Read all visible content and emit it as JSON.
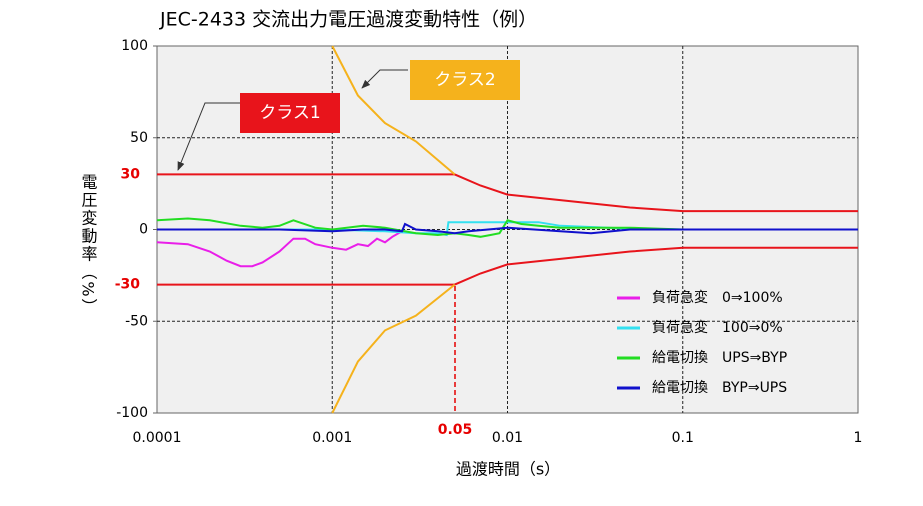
{
  "chart_data": {
    "type": "line",
    "title": "JEC-2433 交流出力電圧過渡変動特性（例）",
    "x_label": "過渡時間（s）",
    "y_label": "電圧変動率（%）",
    "xscale": "log",
    "xlim": [
      0.0001,
      1
    ],
    "xticks": [
      0.0001,
      0.001,
      0.01,
      0.1,
      1
    ],
    "ylim": [
      -100,
      100
    ],
    "yticks": [
      -100,
      -50,
      0,
      50,
      100
    ],
    "ref_yticks": [
      30,
      -30
    ],
    "ref_ytick_color": "#e60000",
    "grid": true,
    "annotation": "0.05",
    "limits": [
      {
        "name": "クラス1",
        "color": "#e8141b",
        "upper_x": [
          0.0001,
          0.005,
          0.007,
          0.01,
          0.02,
          0.05,
          0.1,
          1
        ],
        "upper_values": [
          30,
          30,
          24,
          19,
          16,
          12,
          10,
          10
        ],
        "lower_x": [
          0.0001,
          0.005,
          0.007,
          0.01,
          0.02,
          0.05,
          0.1,
          1
        ],
        "lower_values": [
          -30,
          -30,
          -24,
          -19,
          -16,
          -12,
          -10,
          -10
        ]
      },
      {
        "name": "クラス2",
        "color": "#f5b21c",
        "upper_x": [
          0.001,
          0.0014,
          0.002,
          0.003,
          0.005
        ],
        "upper_values": [
          100,
          73,
          58,
          48,
          30
        ],
        "lower_x": [
          0.001,
          0.0014,
          0.002,
          0.003,
          0.005
        ],
        "lower_values": [
          -100,
          -72,
          -55,
          -47,
          -30
        ]
      }
    ],
    "series": [
      {
        "name": "負荷急変　0⇒100%",
        "color": "#e91ee9",
        "x": [
          0.0001,
          0.00015,
          0.0002,
          0.00025,
          0.0003,
          0.00035,
          0.0004,
          0.0005,
          0.0006,
          0.0007,
          0.0008,
          0.001,
          0.0012,
          0.0014,
          0.0016,
          0.0018,
          0.002,
          0.0022,
          0.0025
        ],
        "values": [
          -7,
          -8,
          -12,
          -17,
          -20,
          -20,
          -18,
          -12,
          -5,
          -5,
          -8,
          -10,
          -11,
          -8,
          -9,
          -5,
          -7,
          -4,
          -1
        ]
      },
      {
        "name": "負荷急変　100⇒0%",
        "color": "#33e0f0",
        "x": [
          0.0001,
          0.0005,
          0.001,
          0.002,
          0.003,
          0.004,
          0.0045,
          0.0046,
          0.006,
          0.008,
          0.01,
          0.015,
          0.02,
          0.05,
          0.1,
          1
        ],
        "values": [
          0,
          0,
          0,
          -1,
          -2,
          -2,
          -3,
          4,
          4,
          4,
          4,
          4,
          2,
          0.5,
          0,
          0
        ]
      },
      {
        "name": "給電切換　UPS⇒BYP",
        "color": "#22dd22",
        "x": [
          0.0001,
          0.00015,
          0.0002,
          0.0003,
          0.0004,
          0.0005,
          0.0006,
          0.0008,
          0.001,
          0.0015,
          0.002,
          0.003,
          0.004,
          0.005,
          0.006,
          0.007,
          0.008,
          0.009,
          0.01,
          0.012,
          0.015,
          0.02,
          0.05,
          0.1,
          1
        ],
        "values": [
          5,
          6,
          5,
          2,
          1,
          2,
          5,
          1,
          0,
          2,
          1,
          -2,
          -3,
          -2,
          -3,
          -4,
          -3,
          -2,
          5,
          3,
          2,
          1,
          1,
          0,
          0
        ]
      },
      {
        "name": "給電切換　BYP⇒UPS",
        "color": "#1010cc",
        "x": [
          0.0001,
          0.0005,
          0.001,
          0.0015,
          0.002,
          0.0025,
          0.0026,
          0.003,
          0.004,
          0.005,
          0.006,
          0.01,
          0.02,
          0.03,
          0.05,
          0.1,
          1
        ],
        "values": [
          0,
          0,
          -1,
          0,
          0,
          -1,
          3,
          0,
          -1,
          -2,
          -1,
          1,
          -1,
          -2,
          0,
          0,
          0
        ]
      }
    ]
  }
}
